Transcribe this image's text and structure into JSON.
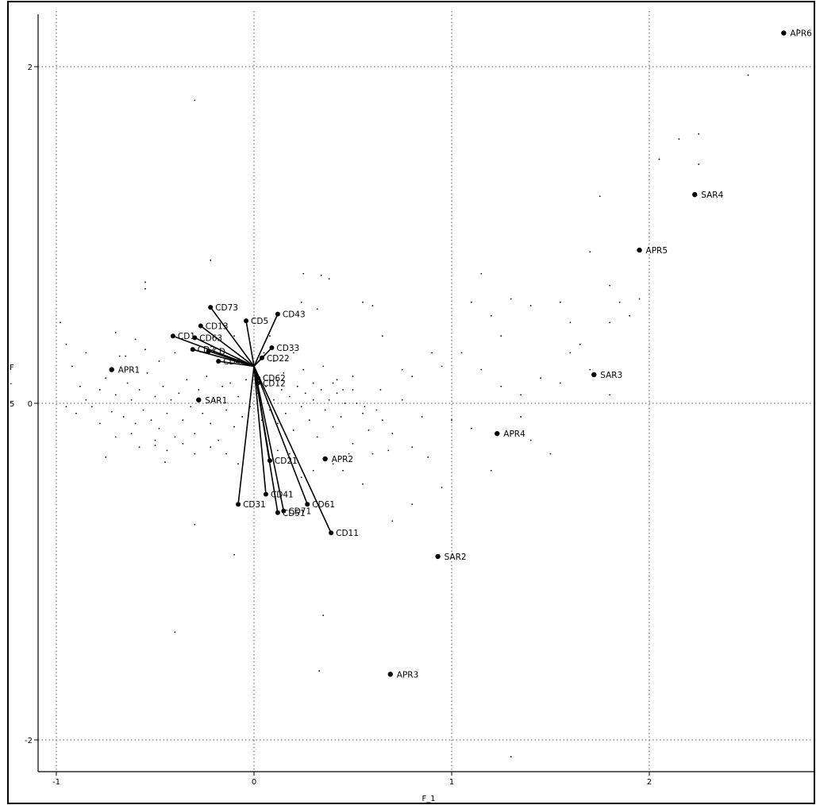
{
  "chart_data": {
    "type": "scatter",
    "title": "",
    "xlabel": "F_1",
    "ylabel": "F",
    "y_axis_extra_labels": [
      "-",
      "5"
    ],
    "xlim": [
      -1.1,
      2.85
    ],
    "ylim": [
      -2.2,
      2.3
    ],
    "xticks": [
      -1,
      0,
      1,
      2
    ],
    "yticks": [
      -2,
      0,
      2
    ],
    "xtick_labels": [
      "-1",
      "0",
      "1",
      "2"
    ],
    "ytick_labels": [
      "-2",
      "0",
      "2"
    ],
    "grid": true,
    "grid_style": "dotted",
    "colors": {
      "ink": "#000000",
      "grid": "#555555",
      "background": "#ffffff"
    },
    "modalities": [
      {
        "label": "APR1",
        "x": -0.72,
        "y": 0.2
      },
      {
        "label": "SAR1",
        "x": -0.28,
        "y": 0.02
      },
      {
        "label": "APR2",
        "x": 0.36,
        "y": -0.33
      },
      {
        "label": "APR3",
        "x": 0.69,
        "y": -1.61
      },
      {
        "label": "SAR2",
        "x": 0.93,
        "y": -0.91
      },
      {
        "label": "APR4",
        "x": 1.23,
        "y": -0.18
      },
      {
        "label": "SAR3",
        "x": 1.72,
        "y": 0.17
      },
      {
        "label": "APR5",
        "x": 1.95,
        "y": 0.91
      },
      {
        "label": "SAR4",
        "x": 2.23,
        "y": 1.24
      },
      {
        "label": "APR6",
        "x": 2.68,
        "y": 2.2
      }
    ],
    "hub": {
      "x": 0.0,
      "y": 0.22
    },
    "vectors": [
      {
        "label": "CD73",
        "x": -0.22,
        "y": 0.57
      },
      {
        "label": "CD13",
        "x": -0.27,
        "y": 0.46
      },
      {
        "label": "CD1",
        "x": -0.41,
        "y": 0.4
      },
      {
        "label": "CD63",
        "x": -0.3,
        "y": 0.39
      },
      {
        "label": "CD2",
        "x": -0.31,
        "y": 0.32
      },
      {
        "label": "CD",
        "x": -0.23,
        "y": 0.31
      },
      {
        "label": "CD4",
        "x": -0.18,
        "y": 0.25
      },
      {
        "label": "CD5",
        "x": -0.04,
        "y": 0.49
      },
      {
        "label": "CD43",
        "x": 0.12,
        "y": 0.53
      },
      {
        "label": "CD33",
        "x": 0.09,
        "y": 0.33
      },
      {
        "label": "CD22",
        "x": 0.04,
        "y": 0.27
      },
      {
        "label": "CD62",
        "x": 0.02,
        "y": 0.15
      },
      {
        "label": "CD12",
        "x": 0.02,
        "y": 0.12
      },
      {
        "label": "CD21",
        "x": 0.08,
        "y": -0.34
      },
      {
        "label": "CD31",
        "x": -0.08,
        "y": -0.6
      },
      {
        "label": "CD41",
        "x": 0.06,
        "y": -0.54
      },
      {
        "label": "CD61",
        "x": 0.27,
        "y": -0.6
      },
      {
        "label": "CD71",
        "x": 0.15,
        "y": -0.64
      },
      {
        "label": "CD51",
        "x": 0.12,
        "y": -0.65
      },
      {
        "label": "CD11",
        "x": 0.39,
        "y": -0.77
      }
    ],
    "scatter": [
      [
        -0.95,
        0.35
      ],
      [
        -0.92,
        0.22
      ],
      [
        -0.88,
        0.1
      ],
      [
        -0.85,
        0.02
      ],
      [
        -0.82,
        -0.02
      ],
      [
        -0.78,
        0.08
      ],
      [
        -0.75,
        0.15
      ],
      [
        -0.72,
        -0.05
      ],
      [
        -0.7,
        0.05
      ],
      [
        -0.68,
        0.28
      ],
      [
        -0.66,
        -0.08
      ],
      [
        -0.64,
        0.12
      ],
      [
        -0.62,
        0.02
      ],
      [
        -0.6,
        -0.12
      ],
      [
        -0.58,
        0.08
      ],
      [
        -0.56,
        -0.04
      ],
      [
        -0.54,
        0.18
      ],
      [
        -0.52,
        -0.1
      ],
      [
        -0.5,
        0.04
      ],
      [
        -0.48,
        -0.15
      ],
      [
        -0.46,
        0.1
      ],
      [
        -0.44,
        -0.06
      ],
      [
        -0.42,
        0.02
      ],
      [
        -0.4,
        -0.2
      ],
      [
        -0.38,
        0.06
      ],
      [
        -0.36,
        -0.1
      ],
      [
        -0.34,
        0.14
      ],
      [
        -0.32,
        -0.02
      ],
      [
        -0.3,
        -0.18
      ],
      [
        -0.28,
        0.08
      ],
      [
        -0.26,
        -0.06
      ],
      [
        -0.24,
        0.16
      ],
      [
        -0.22,
        -0.12
      ],
      [
        -0.2,
        0.02
      ],
      [
        -0.18,
        -0.22
      ],
      [
        -0.16,
        0.1
      ],
      [
        -0.14,
        -0.04
      ],
      [
        -0.12,
        0.12
      ],
      [
        -0.1,
        -0.14
      ],
      [
        -0.08,
        0.04
      ],
      [
        -0.06,
        -0.08
      ],
      [
        -0.04,
        0.14
      ],
      [
        -0.02,
        -0.02
      ],
      [
        0.02,
        0.06
      ],
      [
        0.04,
        -0.1
      ],
      [
        0.06,
        0.1
      ],
      [
        0.08,
        -0.04
      ],
      [
        0.1,
        0.02
      ],
      [
        0.12,
        -0.12
      ],
      [
        0.14,
        0.08
      ],
      [
        0.16,
        -0.06
      ],
      [
        0.18,
        0.04
      ],
      [
        0.2,
        -0.16
      ],
      [
        0.22,
        0.1
      ],
      [
        0.24,
        -0.02
      ],
      [
        0.26,
        0.06
      ],
      [
        0.28,
        -0.1
      ],
      [
        0.3,
        0.02
      ],
      [
        0.32,
        -0.2
      ],
      [
        0.34,
        0.08
      ],
      [
        0.36,
        -0.04
      ],
      [
        0.38,
        0.02
      ],
      [
        0.4,
        -0.14
      ],
      [
        0.42,
        0.06
      ],
      [
        0.44,
        -0.08
      ],
      [
        0.46,
        0.0
      ],
      [
        0.5,
        -0.24
      ],
      [
        0.55,
        -0.06
      ],
      [
        0.6,
        -0.3
      ],
      [
        0.65,
        -0.1
      ],
      [
        0.7,
        -0.18
      ],
      [
        0.75,
        0.02
      ],
      [
        0.8,
        -0.26
      ],
      [
        0.85,
        -0.08
      ],
      [
        0.88,
        -0.32
      ],
      [
        0.62,
        -0.04
      ],
      [
        0.68,
        -0.28
      ],
      [
        0.58,
        -0.16
      ],
      [
        0.4,
        -0.36
      ],
      [
        0.48,
        -0.3
      ],
      [
        0.3,
        -0.4
      ],
      [
        0.18,
        -0.3
      ],
      [
        0.24,
        -0.44
      ],
      [
        0.12,
        -0.28
      ],
      [
        -0.62,
        -0.18
      ],
      [
        -0.58,
        -0.26
      ],
      [
        -0.5,
        -0.22
      ],
      [
        -0.44,
        -0.28
      ],
      [
        -0.36,
        -0.24
      ],
      [
        -0.3,
        -0.3
      ],
      [
        -0.22,
        -0.26
      ],
      [
        -0.14,
        -0.3
      ],
      [
        -0.08,
        -0.36
      ],
      [
        -0.7,
        -0.2
      ],
      [
        -0.78,
        -0.12
      ],
      [
        -0.9,
        -0.06
      ],
      [
        -0.55,
        0.32
      ],
      [
        -0.48,
        0.25
      ],
      [
        -0.4,
        0.3
      ],
      [
        -0.6,
        0.38
      ],
      [
        -0.7,
        0.42
      ],
      [
        -0.85,
        0.3
      ],
      [
        0.05,
        0.3
      ],
      [
        0.1,
        0.25
      ],
      [
        0.15,
        0.18
      ],
      [
        0.2,
        0.3
      ],
      [
        0.25,
        0.2
      ],
      [
        0.3,
        0.12
      ],
      [
        0.35,
        0.22
      ],
      [
        0.4,
        0.12
      ],
      [
        0.45,
        0.08
      ],
      [
        0.5,
        0.16
      ],
      [
        -0.1,
        0.4
      ],
      [
        -0.02,
        0.36
      ],
      [
        0.08,
        0.4
      ],
      [
        0.55,
        0.6
      ],
      [
        0.6,
        0.58
      ],
      [
        0.24,
        0.6
      ],
      [
        0.32,
        0.56
      ],
      [
        0.38,
        0.74
      ],
      [
        0.34,
        0.76
      ],
      [
        0.25,
        0.2
      ],
      [
        0.42,
        0.14
      ],
      [
        0.5,
        0.08
      ],
      [
        0.52,
        0.0
      ],
      [
        0.56,
        -0.02
      ],
      [
        0.64,
        0.08
      ],
      [
        0.75,
        0.2
      ],
      [
        0.8,
        0.16
      ],
      [
        0.95,
        0.22
      ],
      [
        1.05,
        0.3
      ],
      [
        1.15,
        0.2
      ],
      [
        1.25,
        0.1
      ],
      [
        1.35,
        0.05
      ],
      [
        1.45,
        0.15
      ],
      [
        1.55,
        0.12
      ],
      [
        1.6,
        0.3
      ],
      [
        1.7,
        0.2
      ],
      [
        1.8,
        0.05
      ],
      [
        1.1,
        0.6
      ],
      [
        1.2,
        0.52
      ],
      [
        1.3,
        0.62
      ],
      [
        1.4,
        0.58
      ],
      [
        1.55,
        0.6
      ],
      [
        1.6,
        0.48
      ],
      [
        1.8,
        0.48
      ],
      [
        1.9,
        0.52
      ],
      [
        1.95,
        0.62
      ],
      [
        1.85,
        0.6
      ],
      [
        1.8,
        0.7
      ],
      [
        1.7,
        0.9
      ],
      [
        1.15,
        0.77
      ],
      [
        0.9,
        0.3
      ],
      [
        1.0,
        -0.1
      ],
      [
        1.1,
        -0.15
      ],
      [
        1.3,
        -0.18
      ],
      [
        1.35,
        -0.08
      ],
      [
        1.4,
        -0.22
      ],
      [
        1.5,
        -0.3
      ],
      [
        1.2,
        -0.4
      ],
      [
        0.95,
        -0.5
      ],
      [
        0.8,
        -0.6
      ],
      [
        0.7,
        -0.7
      ],
      [
        1.75,
        1.23
      ],
      [
        2.05,
        1.45
      ],
      [
        2.15,
        1.57
      ],
      [
        2.25,
        1.6
      ],
      [
        2.25,
        1.42
      ],
      [
        2.05,
        1.45
      ],
      [
        2.5,
        1.95
      ],
      [
        2.75,
        2.22
      ],
      [
        1.25,
        0.4
      ],
      [
        1.65,
        0.35
      ],
      [
        0.55,
        -0.48
      ],
      [
        0.45,
        -0.4
      ],
      [
        -0.3,
        1.8
      ],
      [
        -0.55,
        0.72
      ],
      [
        -0.22,
        0.85
      ],
      [
        0.25,
        0.77
      ],
      [
        -0.5,
        -0.25
      ],
      [
        -0.95,
        -0.02
      ],
      [
        -0.4,
        -1.36
      ],
      [
        -0.3,
        -0.72
      ],
      [
        0.33,
        -1.59
      ],
      [
        0.35,
        -1.26
      ],
      [
        -0.1,
        -0.9
      ],
      [
        -0.55,
        0.68
      ],
      [
        1.3,
        -2.1
      ],
      [
        -0.65,
        0.28
      ],
      [
        -0.98,
        0.48
      ],
      [
        -0.75,
        -0.32
      ],
      [
        -0.45,
        -0.35
      ],
      [
        0.65,
        0.4
      ]
    ]
  }
}
